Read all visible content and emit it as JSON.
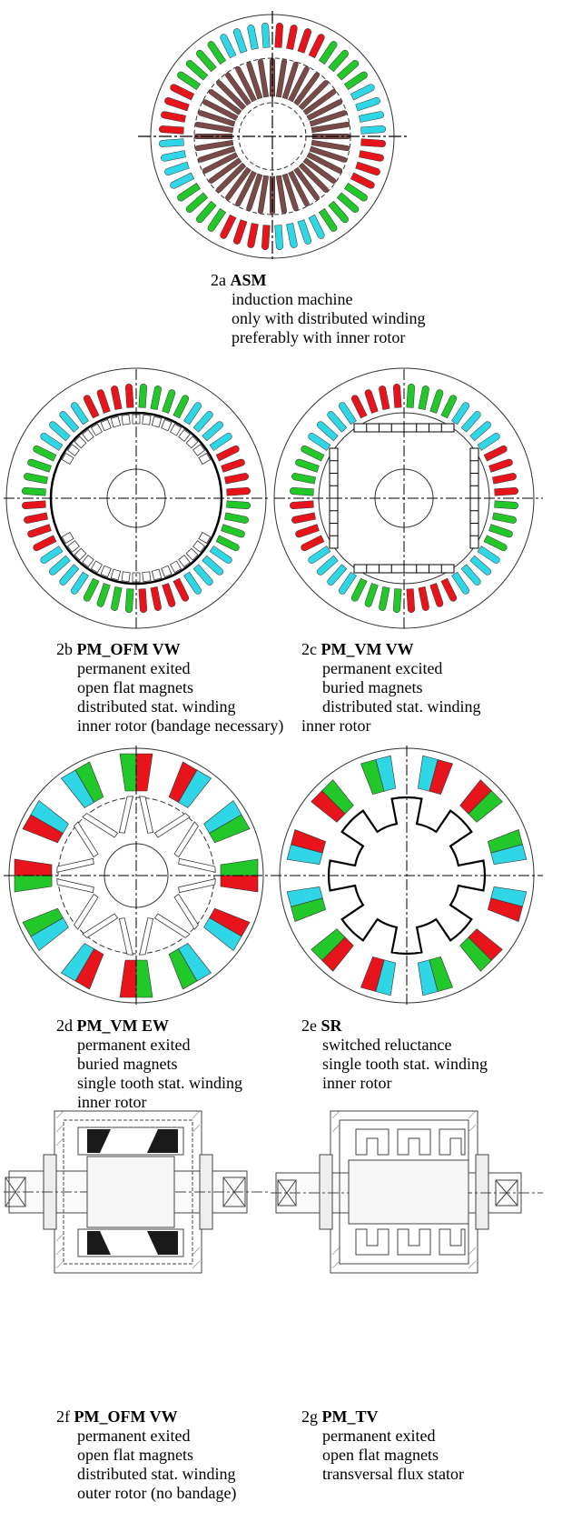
{
  "colors": {
    "red": "#e8141c",
    "green": "#22c72a",
    "cyan": "#2fd6e6",
    "brown": "#7a4a48",
    "black": "#1a1a1a"
  },
  "figures": [
    {
      "id": "2a",
      "name": "ASM",
      "lines": [
        "induction machine",
        "only with distributed winding",
        "preferably with inner rotor"
      ]
    },
    {
      "id": "2b",
      "name": "PM_OFM VW",
      "lines": [
        "permanent exited",
        "open flat magnets",
        "distributed stat. winding",
        "inner rotor (bandage necessary)"
      ]
    },
    {
      "id": "2c",
      "name": "PM_VM VW",
      "lines": [
        "permanent excited",
        "buried magnets",
        "distributed stat. winding",
        "inner rotor"
      ]
    },
    {
      "id": "2d",
      "name": "PM_VM EW",
      "lines": [
        "permanent exited",
        "buried magnets",
        "single tooth stat. winding",
        "inner rotor"
      ]
    },
    {
      "id": "2e",
      "name": "SR",
      "lines": [
        "switched reluctance",
        "single tooth stat. winding",
        "inner rotor"
      ]
    },
    {
      "id": "2f",
      "name": "PM_OFM VW",
      "lines": [
        "permanent exited",
        "open flat magnets",
        "distributed stat. winding",
        "outer rotor (no bandage)"
      ]
    },
    {
      "id": "2g",
      "name": "PM_TV",
      "lines": [
        "permanent exited",
        "open flat magnets",
        "transversal flux stator"
      ]
    }
  ]
}
